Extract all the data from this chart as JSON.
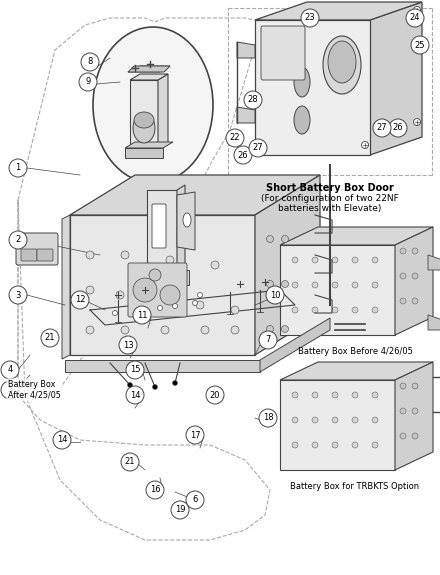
{
  "bg_color": "#ffffff",
  "lc": "#444444",
  "lc_light": "#888888",
  "fig_width": 4.4,
  "fig_height": 5.75,
  "dpi": 100,
  "labels": {
    "short_battery_title": "Short Battery Box Door",
    "short_battery_sub1": "(For configuration of two 22NF",
    "short_battery_sub2": "batteries with Elevate)",
    "battery_box_before": "Battery Box Before 4/26/05",
    "battery_box_trbkts": "Battery Box for TRBKTS Option",
    "battery_box_after": "Battery Box\nAfter 4/25/05"
  }
}
